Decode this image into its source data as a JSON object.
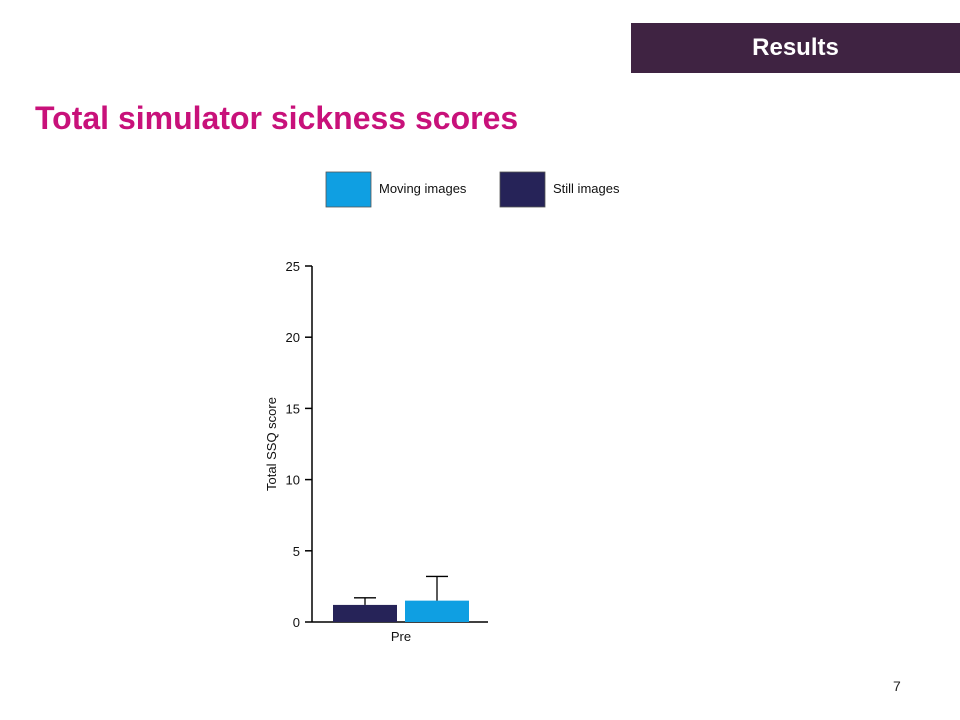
{
  "header": {
    "section_label": "Results"
  },
  "slide": {
    "title": "Total simulator sickness scores",
    "page_number": "7"
  },
  "colors": {
    "moving": "#0f9fe2",
    "still": "#262358",
    "title": "#c8117a",
    "tab_background": "#3f2342"
  },
  "chart_data": {
    "type": "bar",
    "categories": [
      "Pre"
    ],
    "series": [
      {
        "name": "Still images",
        "values": [
          1.2
        ],
        "error": [
          0.5
        ],
        "color": "#262358"
      },
      {
        "name": "Moving images",
        "values": [
          1.5
        ],
        "error": [
          1.7
        ],
        "color": "#0f9fe2"
      }
    ],
    "legend_order": [
      "Moving images",
      "Still images"
    ],
    "ylabel": "Total SSQ score",
    "xlabel": "",
    "ylim": [
      0,
      25
    ],
    "yticks": [
      0,
      5,
      10,
      15,
      20,
      25
    ],
    "legend_position": "top",
    "grid": false
  }
}
